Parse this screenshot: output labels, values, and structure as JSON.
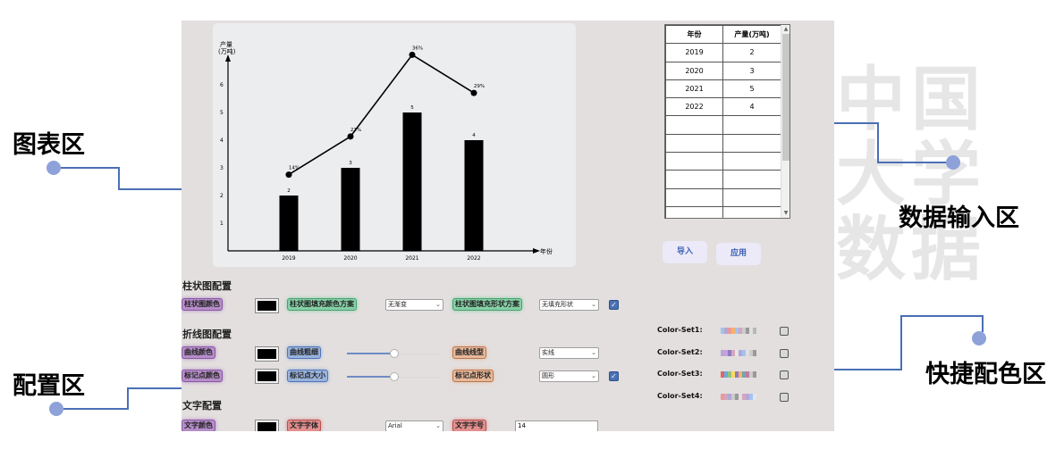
{
  "annotations": {
    "chart_area": "图表区",
    "config_area": "配置区",
    "data_input_area": "数据输入区",
    "quick_color_area": "快捷配色区"
  },
  "colors": {
    "accent_blue": "#4a6fb5",
    "annotation_dot": "#8ea2d9",
    "app_background": "#e3dfde",
    "bar_fill": "#000000",
    "button_text": "#3f63b7"
  },
  "chart_data": {
    "type": "bar",
    "categories": [
      "2019",
      "2020",
      "2021",
      "2022"
    ],
    "values": [
      2,
      3,
      5,
      4
    ],
    "bar_labels": [
      "2",
      "3",
      "5",
      "4"
    ],
    "line_series": {
      "values": [
        14,
        21,
        36,
        29
      ],
      "labels": [
        "14%",
        "21%",
        "36%",
        "29%"
      ],
      "ylim": [
        0,
        40
      ]
    },
    "ylabel": "产量",
    "ylabel_unit": "(万吨)",
    "xlabel": "年份",
    "ylim": [
      0,
      7
    ],
    "yticks": [
      1,
      2,
      3,
      4,
      5,
      6
    ],
    "grid": false
  },
  "data_table": {
    "headers": [
      "年份",
      "产量(万吨)"
    ],
    "rows": [
      [
        "2019",
        "2"
      ],
      [
        "2020",
        "3"
      ],
      [
        "2021",
        "5"
      ],
      [
        "2022",
        "4"
      ],
      [
        "",
        ""
      ],
      [
        "",
        ""
      ],
      [
        "",
        ""
      ],
      [
        "",
        ""
      ],
      [
        "",
        ""
      ],
      [
        "",
        ""
      ]
    ]
  },
  "buttons": {
    "import": "导入",
    "apply": "应用"
  },
  "bar_config": {
    "title": "柱状图配置",
    "color_label": "柱状图颜色",
    "fill_scheme_label": "柱状图填充颜色方案",
    "fill_scheme_value": "无渐变",
    "fill_shape_label": "柱状图填充形状方案",
    "fill_shape_value": "无填充形状",
    "checked": true
  },
  "line_config": {
    "title": "折线图配置",
    "line_color_label": "曲线颜色",
    "line_width_label": "曲线粗细",
    "line_width_level": 0.5,
    "line_style_label": "曲线线型",
    "line_style_value": "实线",
    "marker_color_label": "标记点颜色",
    "marker_size_label": "标记点大小",
    "marker_size_level": 0.5,
    "marker_shape_label": "标记点形状",
    "marker_shape_value": "圆形",
    "checked": true
  },
  "text_config": {
    "title": "文字配置",
    "text_color_label": "文字颜色",
    "font_label": "文字字体",
    "font_value": "Arial",
    "font_size_label": "文字字号",
    "font_size_value": "14"
  },
  "color_sets": [
    {
      "label": "Color-Set1:",
      "colors": [
        "#9fc5e8",
        "#b4a7d6",
        "#ea9999",
        "#f6b26b",
        "#a4c2f4",
        "#d5a6bd",
        "#cccccc",
        "#999999",
        "#e0e0e0",
        "#b7b7b7"
      ]
    },
    {
      "label": "Color-Set2:",
      "colors": [
        "#b4a7d6",
        "#c9a0dc",
        "#8e7cc3",
        "#d5a6bd",
        "#e6e6e6",
        "#b4a7d6",
        "#a4c2f4",
        "#e0e0e0",
        "#cccccc",
        "#999999"
      ]
    },
    {
      "label": "Color-Set3:",
      "colors": [
        "#e06666",
        "#6fa8dc",
        "#93c47d",
        "#ffd966",
        "#8e7cc3",
        "#f6b26b",
        "#76a5af",
        "#c27ba0",
        "#cccccc",
        "#999999"
      ]
    },
    {
      "label": "Color-Set4:",
      "colors": [
        "#ea9999",
        "#d5a6bd",
        "#b4a7d6",
        "#cccccc",
        "#999999",
        "#e0e0e0",
        "#d5a6bd",
        "#b4a7d6",
        "#a4c2f4",
        "#e6e6e6"
      ]
    }
  ]
}
